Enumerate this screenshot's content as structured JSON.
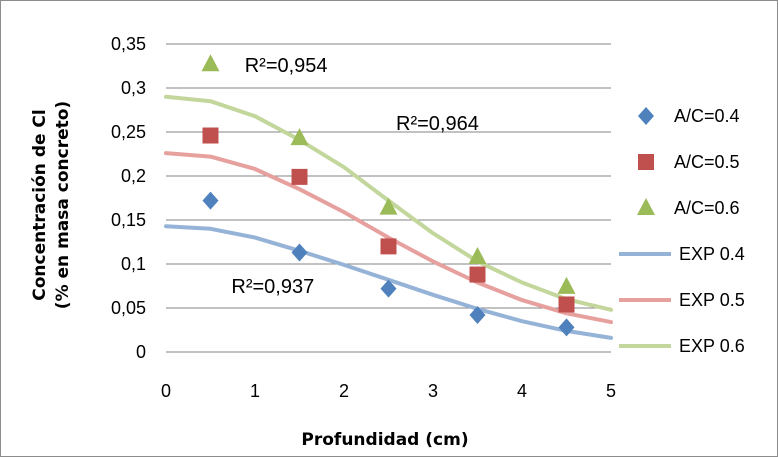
{
  "chart_data": {
    "type": "scatter",
    "title": "",
    "xlabel": "Profundidad (cm)",
    "ylabel_line1": "Concentración de Cl",
    "ylabel_line2": "(% en masa concreto)",
    "xlim": [
      0,
      5
    ],
    "ylim": [
      0,
      0.35
    ],
    "x_ticks": [
      0,
      1,
      2,
      3,
      4,
      5
    ],
    "x_tick_labels": [
      "0",
      "1",
      "2",
      "3",
      "4",
      "5"
    ],
    "y_ticks": [
      0,
      0.05,
      0.1,
      0.15,
      0.2,
      0.25,
      0.3,
      0.35
    ],
    "y_tick_labels": [
      "0",
      "0,05",
      "0,1",
      "0,15",
      "0,2",
      "0,25",
      "0,3",
      "0,35"
    ],
    "grid": "horizontal",
    "legend_position": "right",
    "series": [
      {
        "name": "A/C=0.4",
        "kind": "points",
        "marker": "diamond",
        "color": "#4f81bd",
        "x": [
          0.5,
          1.5,
          2.5,
          3.5,
          4.5
        ],
        "y": [
          0.172,
          0.113,
          0.072,
          0.042,
          0.028
        ]
      },
      {
        "name": "A/C=0.5",
        "kind": "points",
        "marker": "square",
        "color": "#c0504d",
        "x": [
          0.5,
          1.5,
          2.5,
          3.5,
          4.5
        ],
        "y": [
          0.246,
          0.199,
          0.12,
          0.088,
          0.054
        ]
      },
      {
        "name": "A/C=0.6",
        "kind": "points",
        "marker": "triangle",
        "color": "#9bbb59",
        "x": [
          0.5,
          1.5,
          2.5,
          3.5,
          4.5
        ],
        "y": [
          0.327,
          0.243,
          0.164,
          0.108,
          0.074
        ]
      },
      {
        "name": "EXP 0.4",
        "kind": "line",
        "color": "#95b3d7",
        "x": [
          0,
          0.5,
          1,
          1.5,
          2,
          2.5,
          3,
          3.5,
          4,
          4.5,
          5
        ],
        "y": [
          0.143,
          0.14,
          0.13,
          0.115,
          0.099,
          0.082,
          0.065,
          0.049,
          0.035,
          0.024,
          0.016
        ]
      },
      {
        "name": "EXP 0.5",
        "kind": "line",
        "color": "#e6a09e",
        "x": [
          0,
          0.5,
          1,
          1.5,
          2,
          2.5,
          3,
          3.5,
          4,
          4.5,
          5
        ],
        "y": [
          0.226,
          0.222,
          0.208,
          0.185,
          0.159,
          0.13,
          0.103,
          0.079,
          0.059,
          0.044,
          0.034
        ]
      },
      {
        "name": "EXP 0.6",
        "kind": "line",
        "color": "#c3d69b",
        "x": [
          0,
          0.5,
          1,
          1.5,
          2,
          2.5,
          3,
          3.5,
          4,
          4.5,
          5
        ],
        "y": [
          0.29,
          0.285,
          0.268,
          0.241,
          0.21,
          0.172,
          0.135,
          0.103,
          0.079,
          0.06,
          0.048
        ]
      }
    ],
    "annotations": [
      {
        "text": "R²=0,954",
        "x": 1.35,
        "y": 0.318
      },
      {
        "text": "R²=0,964",
        "x": 3.05,
        "y": 0.252
      },
      {
        "text": "R²=0,937",
        "x": 1.2,
        "y": 0.067
      }
    ]
  }
}
